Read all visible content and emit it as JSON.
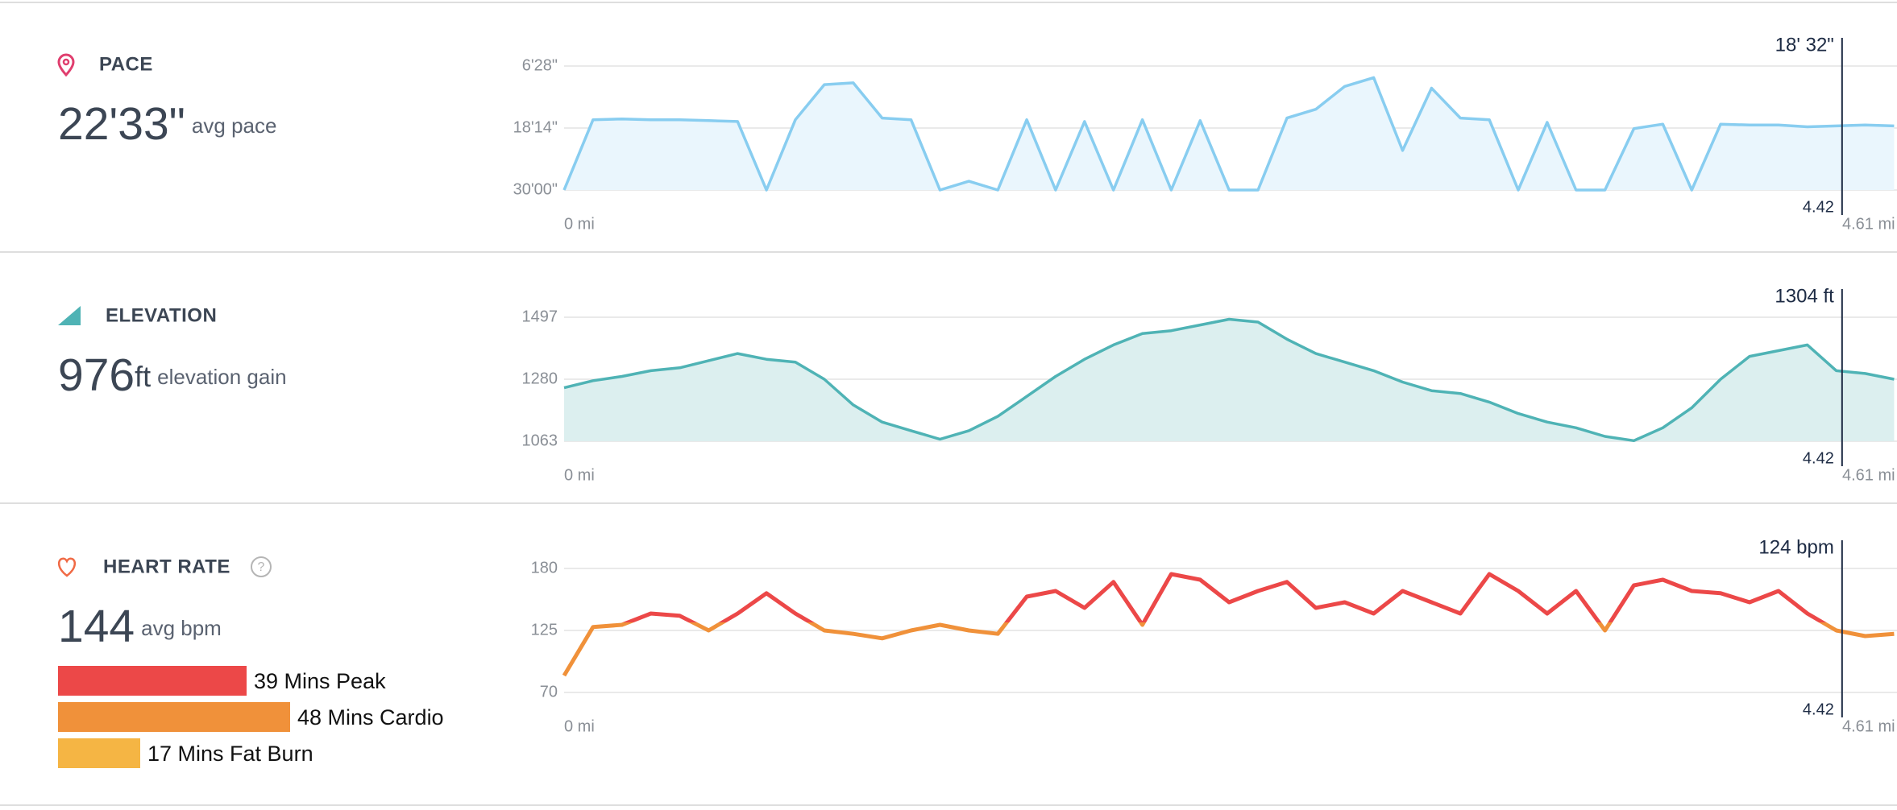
{
  "chart_data": [
    {
      "type": "area",
      "title": "PACE",
      "summary_value": "22'33\"",
      "summary_label": "avg pace",
      "color": "#88cdf0",
      "fill": "#eaf6fd",
      "xlim": [
        0,
        4.61
      ],
      "xticks": [
        {
          "value": 0,
          "label": "0 mi"
        },
        {
          "value": 4.61,
          "label": "4.61 mi"
        }
      ],
      "ylim": [
        1800,
        388
      ],
      "yticks": [
        {
          "value": 388,
          "label": "6'28\""
        },
        {
          "value": 1094,
          "label": "18'14\""
        },
        {
          "value": 1800,
          "label": "30'00\""
        }
      ],
      "cursor_x": 4.42,
      "cursor_label": "18' 32\"",
      "x": [
        0,
        0.1,
        0.2,
        0.3,
        0.4,
        0.5,
        0.6,
        0.7,
        0.8,
        0.9,
        1.0,
        1.1,
        1.2,
        1.3,
        1.4,
        1.5,
        1.6,
        1.7,
        1.8,
        1.9,
        2.0,
        2.1,
        2.2,
        2.3,
        2.4,
        2.5,
        2.6,
        2.7,
        2.8,
        2.9,
        3.0,
        3.1,
        3.2,
        3.3,
        3.4,
        3.5,
        3.6,
        3.7,
        3.8,
        3.9,
        4.0,
        4.1,
        4.2,
        4.3,
        4.4,
        4.5,
        4.6
      ],
      "values": [
        1800,
        1000,
        990,
        1000,
        1000,
        1010,
        1020,
        1800,
        1000,
        600,
        580,
        980,
        1000,
        1800,
        1700,
        1800,
        1000,
        1800,
        1020,
        1800,
        1000,
        1800,
        1010,
        1800,
        1800,
        980,
        880,
        620,
        520,
        1350,
        640,
        980,
        1000,
        1800,
        1030,
        1800,
        1800,
        1100,
        1050,
        1800,
        1050,
        1060,
        1060,
        1080,
        1070,
        1060,
        1070
      ]
    },
    {
      "type": "area",
      "title": "ELEVATION",
      "summary_value": 976,
      "summary_unit": "ft",
      "summary_label": "elevation gain",
      "color": "#4fb3b5",
      "fill": "#dcefef",
      "xlim": [
        0,
        4.61
      ],
      "xticks": [
        {
          "value": 0,
          "label": "0 mi"
        },
        {
          "value": 4.61,
          "label": "4.61 mi"
        }
      ],
      "ylim": [
        1063,
        1497
      ],
      "yticks": [
        1063,
        1280,
        1497
      ],
      "cursor_x": 4.42,
      "cursor_label": "1304 ft",
      "x": [
        0,
        0.1,
        0.2,
        0.3,
        0.4,
        0.5,
        0.6,
        0.7,
        0.8,
        0.9,
        1.0,
        1.1,
        1.2,
        1.3,
        1.4,
        1.5,
        1.6,
        1.7,
        1.8,
        1.9,
        2.0,
        2.1,
        2.2,
        2.3,
        2.4,
        2.5,
        2.6,
        2.7,
        2.8,
        2.9,
        3.0,
        3.1,
        3.2,
        3.3,
        3.4,
        3.5,
        3.6,
        3.7,
        3.8,
        3.9,
        4.0,
        4.1,
        4.2,
        4.3,
        4.4,
        4.5,
        4.6
      ],
      "values": [
        1250,
        1275,
        1290,
        1310,
        1320,
        1345,
        1370,
        1350,
        1340,
        1280,
        1190,
        1130,
        1100,
        1070,
        1100,
        1150,
        1220,
        1290,
        1350,
        1400,
        1440,
        1450,
        1470,
        1490,
        1480,
        1420,
        1370,
        1340,
        1310,
        1270,
        1240,
        1230,
        1200,
        1160,
        1130,
        1110,
        1080,
        1065,
        1110,
        1180,
        1280,
        1360,
        1380,
        1400,
        1310,
        1300,
        1280
      ]
    },
    {
      "type": "line",
      "title": "HEART RATE",
      "summary_value": 144,
      "summary_label": "avg bpm",
      "xlim": [
        0,
        4.61
      ],
      "xticks": [
        {
          "value": 0,
          "label": "0 mi"
        },
        {
          "value": 4.61,
          "label": "4.61 mi"
        }
      ],
      "ylim": [
        70,
        180
      ],
      "yticks": [
        70,
        125,
        180
      ],
      "cursor_x": 4.42,
      "cursor_label": "124 bpm",
      "zones": [
        {
          "label": "39 Mins Peak",
          "minutes": 39,
          "color": "#ec4848"
        },
        {
          "label": "48 Mins Cardio",
          "minutes": 48,
          "color": "#f0913a"
        },
        {
          "label": "17 Mins Fat Burn",
          "minutes": 17,
          "color": "#f5b544"
        }
      ],
      "x": [
        0,
        0.1,
        0.2,
        0.3,
        0.4,
        0.5,
        0.6,
        0.7,
        0.8,
        0.9,
        1.0,
        1.1,
        1.2,
        1.3,
        1.4,
        1.5,
        1.6,
        1.7,
        1.8,
        1.9,
        2.0,
        2.1,
        2.2,
        2.3,
        2.4,
        2.5,
        2.6,
        2.7,
        2.8,
        2.9,
        3.0,
        3.1,
        3.2,
        3.3,
        3.4,
        3.5,
        3.6,
        3.7,
        3.8,
        3.9,
        4.0,
        4.1,
        4.2,
        4.3,
        4.4,
        4.5,
        4.6
      ],
      "values": [
        85,
        128,
        130,
        140,
        138,
        125,
        140,
        158,
        140,
        125,
        122,
        118,
        125,
        130,
        125,
        122,
        155,
        160,
        145,
        168,
        130,
        175,
        170,
        150,
        160,
        168,
        145,
        150,
        140,
        160,
        150,
        140,
        175,
        160,
        140,
        160,
        125,
        165,
        170,
        160,
        158,
        150,
        160,
        140,
        125,
        120,
        122
      ]
    }
  ]
}
